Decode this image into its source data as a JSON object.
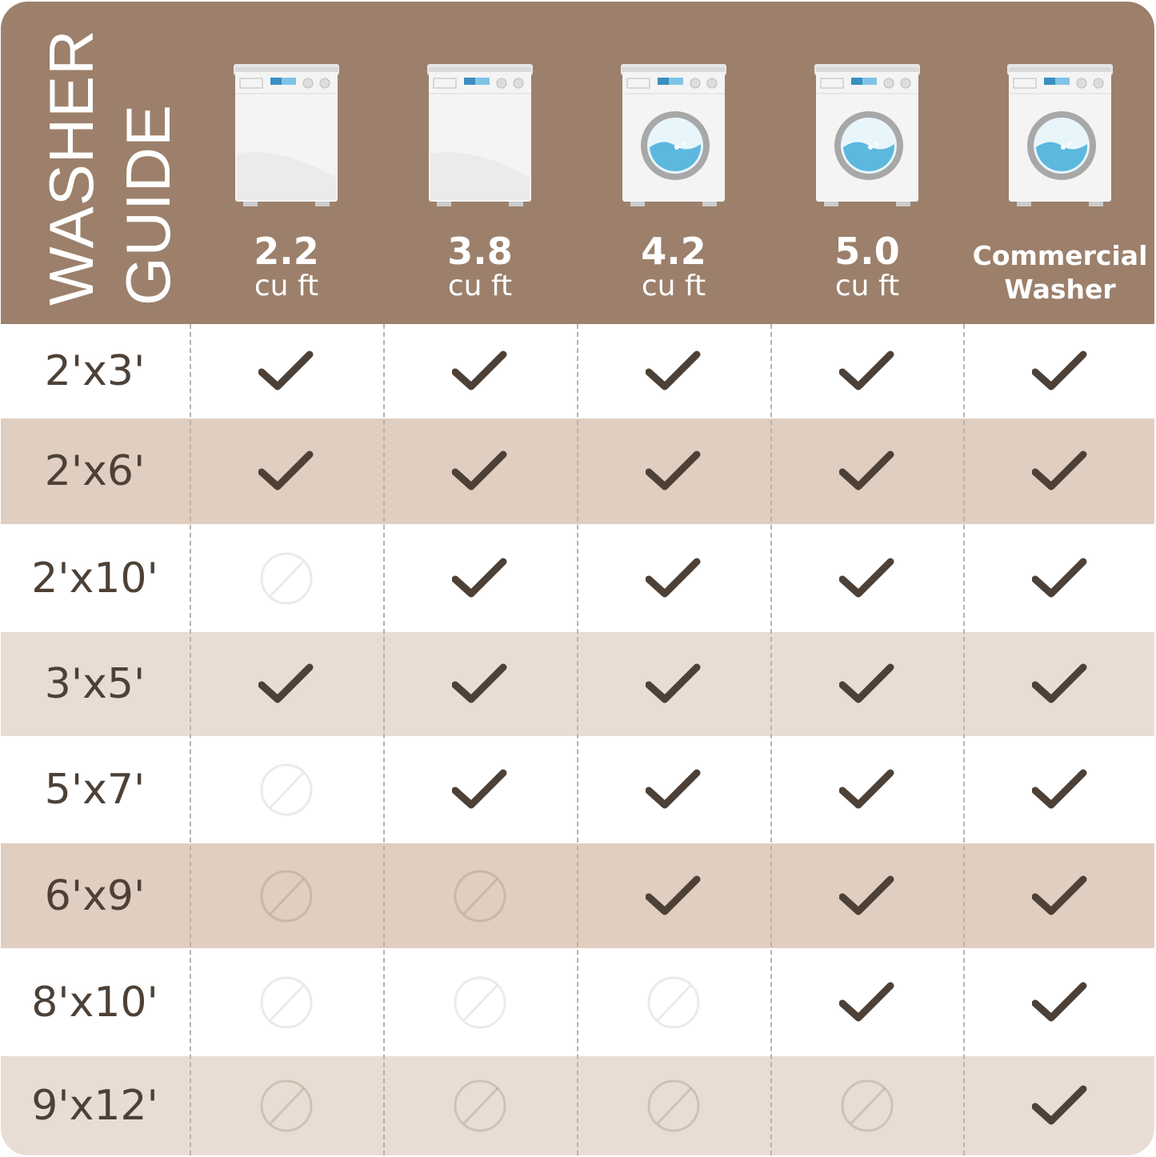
{
  "title": [
    "WASHER",
    "GUIDE"
  ],
  "colors": {
    "header": "#9c806b",
    "row_dark": "#e0cec0",
    "row_light": "#e9ddd3",
    "text": "#4d4137",
    "check": "#4d4137"
  },
  "columns": [
    {
      "capacity": "2.2",
      "unit": "cu ft",
      "icon": "top-load-washer-icon"
    },
    {
      "capacity": "3.8",
      "unit": "cu ft",
      "icon": "top-load-washer-icon"
    },
    {
      "capacity": "4.2",
      "unit": "cu ft",
      "icon": "front-load-washer-icon"
    },
    {
      "capacity": "5.0",
      "unit": "cu ft",
      "icon": "front-load-washer-icon"
    },
    {
      "capacity": "Commercial",
      "unit": "Washer",
      "icon": "front-load-washer-icon"
    }
  ],
  "rows": [
    {
      "size": "2'x3'",
      "fits": [
        true,
        true,
        true,
        true,
        true
      ],
      "shade": "white"
    },
    {
      "size": "2'x6'",
      "fits": [
        true,
        true,
        true,
        true,
        true
      ],
      "shade": "dark"
    },
    {
      "size": "2'x10'",
      "fits": [
        false,
        true,
        true,
        true,
        true
      ],
      "shade": "white"
    },
    {
      "size": "3'x5'",
      "fits": [
        true,
        true,
        true,
        true,
        true
      ],
      "shade": "light"
    },
    {
      "size": "5'x7'",
      "fits": [
        false,
        true,
        true,
        true,
        true
      ],
      "shade": "white"
    },
    {
      "size": "6'x9'",
      "fits": [
        false,
        false,
        true,
        true,
        true
      ],
      "shade": "dark"
    },
    {
      "size": "8'x10'",
      "fits": [
        false,
        false,
        false,
        true,
        true
      ],
      "shade": "white"
    },
    {
      "size": "9'x12'",
      "fits": [
        false,
        false,
        false,
        false,
        true
      ],
      "shade": "light"
    }
  ]
}
